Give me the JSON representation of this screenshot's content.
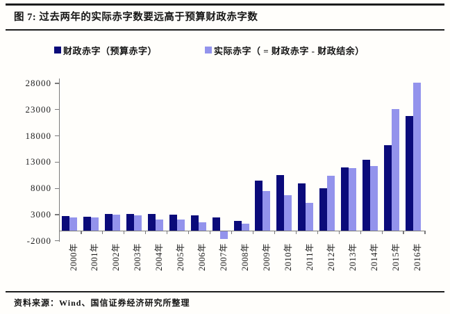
{
  "header": {
    "title": "图 7: 过去两年的实际赤字数要远高于预算财政赤字数"
  },
  "footer": {
    "source": "资料来源：Wind、国信证券经济研究所整理"
  },
  "colors": {
    "budget_series": "#0b0b7a",
    "actual_series": "#9393ec",
    "axis": "#7a7a7a",
    "rule": "#1c1c1c"
  },
  "chart_data": {
    "type": "bar",
    "title": "过去两年的实际赤字数要远高于预算财政赤字数",
    "categories": [
      "2000年",
      "2001年",
      "2002年",
      "2003年",
      "2004年",
      "2005年",
      "2006年",
      "2007年",
      "2008年",
      "2009年",
      "2010年",
      "2011年",
      "2012年",
      "2013年",
      "2014年",
      "2015年",
      "2016年"
    ],
    "series": [
      {
        "name": "财政赤字（预算赤字）",
        "color": "#0b0b7a",
        "values": [
          2800,
          2650,
          3100,
          3200,
          3200,
          3000,
          2900,
          2500,
          1850,
          9500,
          10500,
          9000,
          8000,
          12000,
          13500,
          16200,
          21800
        ]
      },
      {
        "name": "实际赤字（ = 财政赤字 - 财政结余）",
        "color": "#9393ec",
        "values": [
          2500,
          2450,
          3000,
          2900,
          2100,
          2100,
          1600,
          -1600,
          1250,
          7500,
          6650,
          5200,
          10400,
          11900,
          12300,
          23100,
          28100
        ]
      }
    ],
    "xlabel": "",
    "ylabel": "",
    "ylim": [
      -2000,
      28000
    ],
    "yticks": [
      -2000,
      3000,
      8000,
      13000,
      18000,
      23000,
      28000
    ],
    "grid": false,
    "legend_position": "top"
  }
}
